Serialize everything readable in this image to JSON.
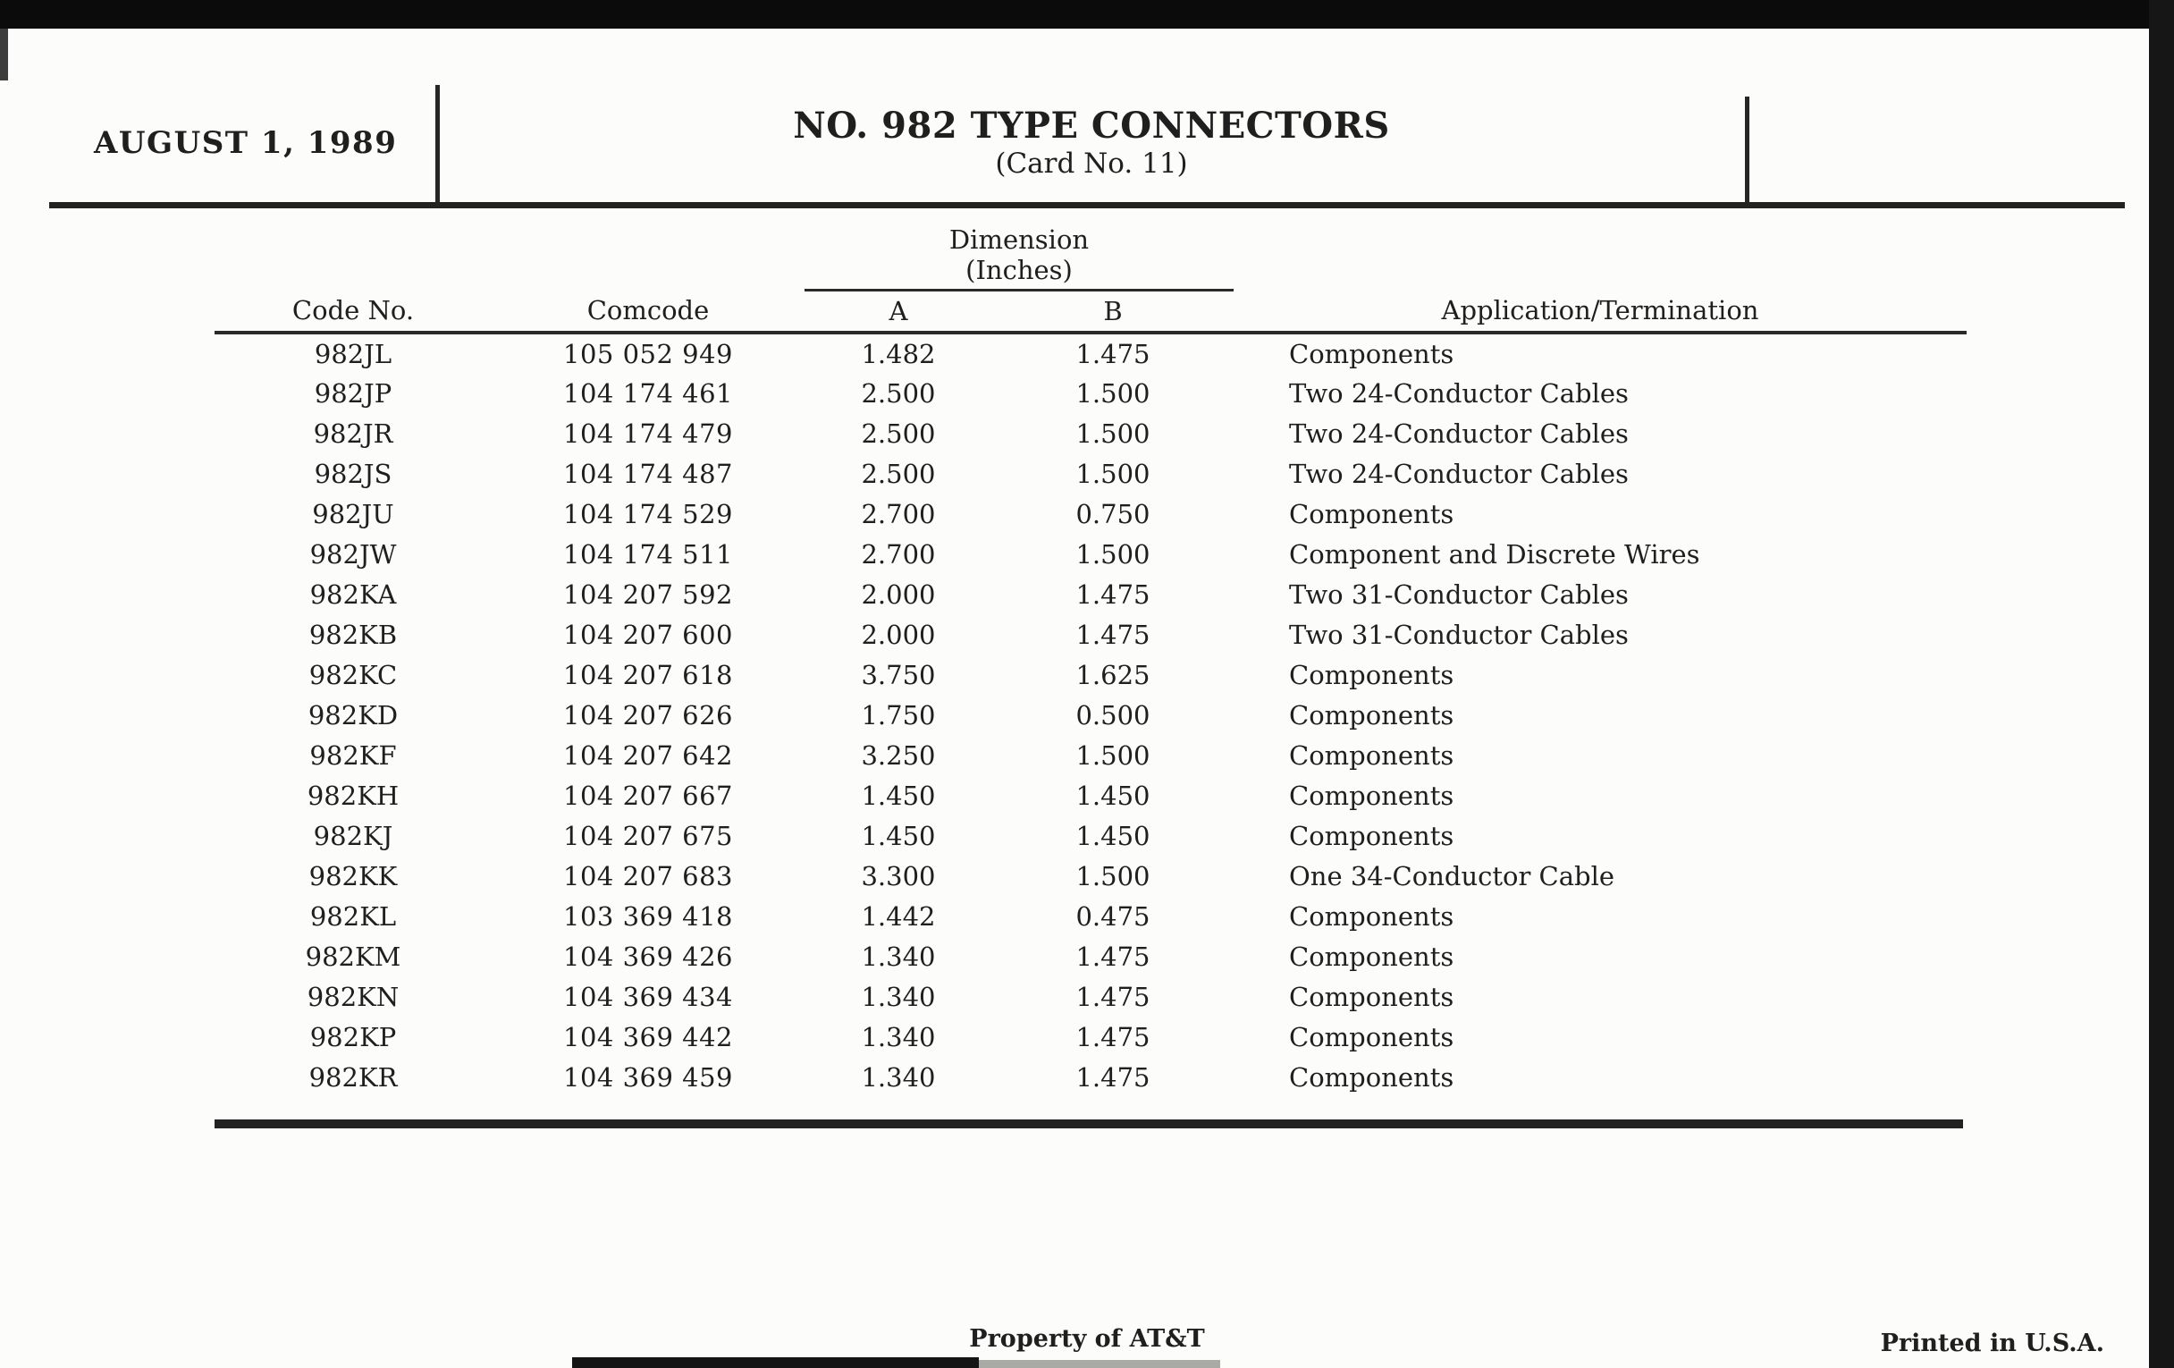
{
  "page": {
    "date": "AUGUST 1, 1989",
    "title": "NO. 982 TYPE CONNECTORS",
    "subtitle": "(Card No. 11)"
  },
  "table": {
    "dimension_header": "Dimension",
    "dimension_subheader": "(Inches)",
    "columns": {
      "code": "Code No.",
      "comcode": "Comcode",
      "dim_a": "A",
      "dim_b": "B",
      "application": "Application/Termination"
    },
    "rows": [
      {
        "code": "982JL",
        "comcode": "105 052 949",
        "a": "1.482",
        "b": "1.475",
        "application": "Components"
      },
      {
        "code": "982JP",
        "comcode": "104 174 461",
        "a": "2.500",
        "b": "1.500",
        "application": "Two 24-Conductor Cables"
      },
      {
        "code": "982JR",
        "comcode": "104 174 479",
        "a": "2.500",
        "b": "1.500",
        "application": "Two 24-Conductor Cables"
      },
      {
        "code": "982JS",
        "comcode": "104 174 487",
        "a": "2.500",
        "b": "1.500",
        "application": "Two 24-Conductor Cables"
      },
      {
        "code": "982JU",
        "comcode": "104 174 529",
        "a": "2.700",
        "b": "0.750",
        "application": "Components"
      },
      {
        "code": "982JW",
        "comcode": "104 174 511",
        "a": "2.700",
        "b": "1.500",
        "application": "Component and Discrete Wires"
      },
      {
        "code": "982KA",
        "comcode": "104 207 592",
        "a": "2.000",
        "b": "1.475",
        "application": "Two 31-Conductor Cables"
      },
      {
        "code": "982KB",
        "comcode": "104 207 600",
        "a": "2.000",
        "b": "1.475",
        "application": "Two 31-Conductor Cables"
      },
      {
        "code": "982KC",
        "comcode": "104 207 618",
        "a": "3.750",
        "b": "1.625",
        "application": "Components"
      },
      {
        "code": "982KD",
        "comcode": "104 207 626",
        "a": "1.750",
        "b": "0.500",
        "application": "Components"
      },
      {
        "code": "982KF",
        "comcode": "104 207 642",
        "a": "3.250",
        "b": "1.500",
        "application": "Components"
      },
      {
        "code": "982KH",
        "comcode": "104 207 667",
        "a": "1.450",
        "b": "1.450",
        "application": "Components"
      },
      {
        "code": "982KJ",
        "comcode": "104 207 675",
        "a": "1.450",
        "b": "1.450",
        "application": "Components"
      },
      {
        "code": "982KK",
        "comcode": "104 207 683",
        "a": "3.300",
        "b": "1.500",
        "application": "One 34-Conductor Cable"
      },
      {
        "code": "982KL",
        "comcode": "103 369 418",
        "a": "1.442",
        "b": "0.475",
        "application": "Components"
      },
      {
        "code": "982KM",
        "comcode": "104 369 426",
        "a": "1.340",
        "b": "1.475",
        "application": "Components"
      },
      {
        "code": "982KN",
        "comcode": "104 369 434",
        "a": "1.340",
        "b": "1.475",
        "application": "Components"
      },
      {
        "code": "982KP",
        "comcode": "104 369 442",
        "a": "1.340",
        "b": "1.475",
        "application": "Components"
      },
      {
        "code": "982KR",
        "comcode": "104 369 459",
        "a": "1.340",
        "b": "1.475",
        "application": "Components"
      }
    ]
  },
  "footer": {
    "property": "Property of AT&T",
    "printed": "Printed in U.S.A."
  },
  "colors": {
    "ink": "#1f1f1f",
    "paper": "#fcfcfa",
    "scan_black": "#0b0b0b"
  }
}
